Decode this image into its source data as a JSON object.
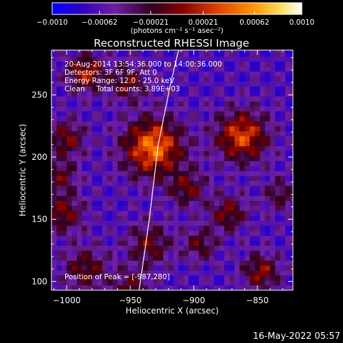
{
  "chart_data": {
    "type": "heatmap",
    "title": "Reconstructed RHESSI Image",
    "xlabel": "Heliocentric X (arcsec)",
    "ylabel": "Heliocentric Y (arcsec)",
    "xlim": [
      -1012,
      -822
    ],
    "ylim": [
      93,
      286
    ],
    "x_ticks": [
      -1000,
      -950,
      -900,
      -850
    ],
    "x_tick_labels": [
      "−1000",
      "−950",
      "−900",
      "−850"
    ],
    "y_ticks": [
      100,
      150,
      200,
      250
    ],
    "y_tick_labels": [
      "100",
      "150",
      "200",
      "250"
    ],
    "colorbar": {
      "min": -0.001,
      "max": 0.001,
      "ticks": [
        -0.001,
        -0.00062,
        -0.00021,
        0.00021,
        0.00062,
        0.001
      ],
      "tick_labels": [
        "−0.0010",
        "−0.00062",
        "−0.00021",
        "0.00021",
        "0.00062",
        "0.0010"
      ],
      "unit_label": "(photons cm⁻² s⁻¹ asec⁻²)",
      "colors": [
        "#0000ff",
        "#3000c0",
        "#7020a0",
        "#300020",
        "#800000",
        "#e04000",
        "#ff9000",
        "#ffe060",
        "#ffffff"
      ]
    },
    "annotations": [
      "20-Aug-2014 13:54:36.000 to 14:00:36.000",
      "Detectors: 3F 6F 9F, Att 0",
      "Energy Range: 12.0 - 25.0 keV",
      "Clean     Total counts: 3.89E+03"
    ],
    "peak_label": "Position of Peak = [-987,280]",
    "sources": [
      {
        "x": -932,
        "y": 208,
        "amp": 1.0,
        "sigma": 16
      },
      {
        "x": -862,
        "y": 217,
        "amp": 0.85,
        "sigma": 14
      },
      {
        "x": -985,
        "y": 268,
        "amp": 0.7,
        "sigma": 10
      },
      {
        "x": -1000,
        "y": 215,
        "amp": 0.55,
        "sigma": 10
      },
      {
        "x": -1003,
        "y": 155,
        "amp": 0.55,
        "sigma": 11
      },
      {
        "x": -985,
        "y": 110,
        "amp": 0.5,
        "sigma": 12
      },
      {
        "x": -935,
        "y": 130,
        "amp": 0.5,
        "sigma": 12
      },
      {
        "x": -905,
        "y": 175,
        "amp": 0.5,
        "sigma": 10
      },
      {
        "x": -873,
        "y": 155,
        "amp": 0.55,
        "sigma": 10
      },
      {
        "x": -847,
        "y": 108,
        "amp": 0.6,
        "sigma": 10
      },
      {
        "x": -950,
        "y": 95,
        "amp": 0.45,
        "sigma": 10
      },
      {
        "x": -895,
        "y": 130,
        "amp": 0.45,
        "sigma": 9
      },
      {
        "x": -952,
        "y": 260,
        "amp": 0.5,
        "sigma": 10
      },
      {
        "x": -1005,
        "y": 185,
        "amp": 0.45,
        "sigma": 9
      },
      {
        "x": -832,
        "y": 170,
        "amp": 0.4,
        "sigma": 9
      }
    ],
    "limb_points": [
      [
        -943,
        93
      ],
      [
        -935,
        150
      ],
      [
        -928,
        210
      ],
      [
        -918,
        260
      ],
      [
        -912,
        286
      ]
    ]
  },
  "footer_timestamp": "16-May-2022 05:57"
}
